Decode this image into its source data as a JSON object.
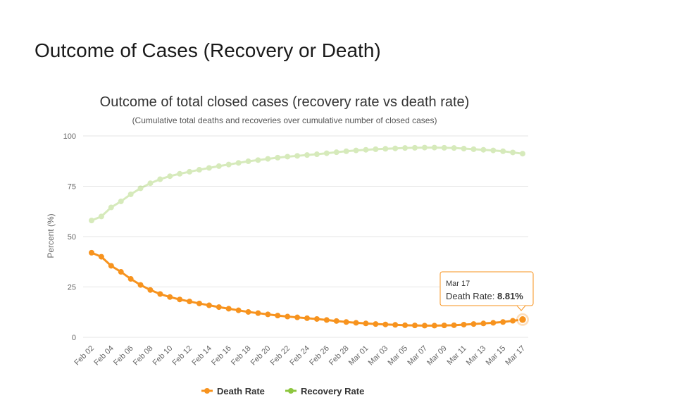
{
  "page": {
    "heading": "Outcome of Cases (Recovery or Death)"
  },
  "chart_data": {
    "type": "line",
    "title": "Outcome of total closed cases (recovery rate vs death rate)",
    "subtitle": "(Cumulative total deaths and recoveries over cumulative number of closed cases)",
    "xlabel": "",
    "ylabel": "Percent (%)",
    "ylim": [
      0,
      100
    ],
    "yticks": [
      0,
      25,
      50,
      75,
      100
    ],
    "grid": true,
    "legend_position": "bottom",
    "x_tick_labels": [
      "Feb 02",
      "Feb 04",
      "Feb 06",
      "Feb 08",
      "Feb 10",
      "Feb 12",
      "Feb 14",
      "Feb 16",
      "Feb 18",
      "Feb 20",
      "Feb 22",
      "Feb 24",
      "Feb 26",
      "Feb 28",
      "Mar 01",
      "Mar 03",
      "Mar 05",
      "Mar 07",
      "Mar 09",
      "Mar 11",
      "Mar 13",
      "Mar 15",
      "Mar 17"
    ],
    "x": [
      "Feb 02",
      "Feb 03",
      "Feb 04",
      "Feb 05",
      "Feb 06",
      "Feb 07",
      "Feb 08",
      "Feb 09",
      "Feb 10",
      "Feb 11",
      "Feb 12",
      "Feb 13",
      "Feb 14",
      "Feb 15",
      "Feb 16",
      "Feb 17",
      "Feb 18",
      "Feb 19",
      "Feb 20",
      "Feb 21",
      "Feb 22",
      "Feb 23",
      "Feb 24",
      "Feb 25",
      "Feb 26",
      "Feb 27",
      "Feb 28",
      "Feb 29",
      "Mar 01",
      "Mar 02",
      "Mar 03",
      "Mar 04",
      "Mar 05",
      "Mar 06",
      "Mar 07",
      "Mar 08",
      "Mar 09",
      "Mar 10",
      "Mar 11",
      "Mar 12",
      "Mar 13",
      "Mar 14",
      "Mar 15",
      "Mar 16",
      "Mar 17"
    ],
    "series": [
      {
        "name": "Death Rate",
        "color": "#f7931e",
        "values": [
          42,
          40,
          35.5,
          32.5,
          29,
          26,
          23.5,
          21.5,
          20,
          18.8,
          17.8,
          16.8,
          15.9,
          15,
          14.2,
          13.4,
          12.6,
          12,
          11.4,
          10.8,
          10.3,
          9.9,
          9.5,
          9.1,
          8.6,
          8.1,
          7.6,
          7.2,
          6.9,
          6.6,
          6.4,
          6.2,
          6.0,
          5.9,
          5.8,
          5.8,
          5.9,
          6.0,
          6.3,
          6.6,
          6.9,
          7.2,
          7.6,
          8.2,
          8.81
        ]
      },
      {
        "name": "Recovery Rate",
        "color": "#8dc63f",
        "values": [
          58,
          60,
          64.5,
          67.5,
          71,
          74,
          76.5,
          78.5,
          80,
          81.2,
          82.2,
          83.2,
          84.1,
          85,
          85.8,
          86.6,
          87.4,
          88,
          88.6,
          89.2,
          89.7,
          90.1,
          90.5,
          90.9,
          91.4,
          91.9,
          92.4,
          92.8,
          93.1,
          93.4,
          93.6,
          93.8,
          94.0,
          94.1,
          94.2,
          94.2,
          94.1,
          94.0,
          93.7,
          93.4,
          93.1,
          92.8,
          92.4,
          91.8,
          91.19
        ]
      }
    ],
    "tooltip": {
      "date": "Mar 17",
      "label": "Death Rate: ",
      "value": "8.81%"
    }
  }
}
